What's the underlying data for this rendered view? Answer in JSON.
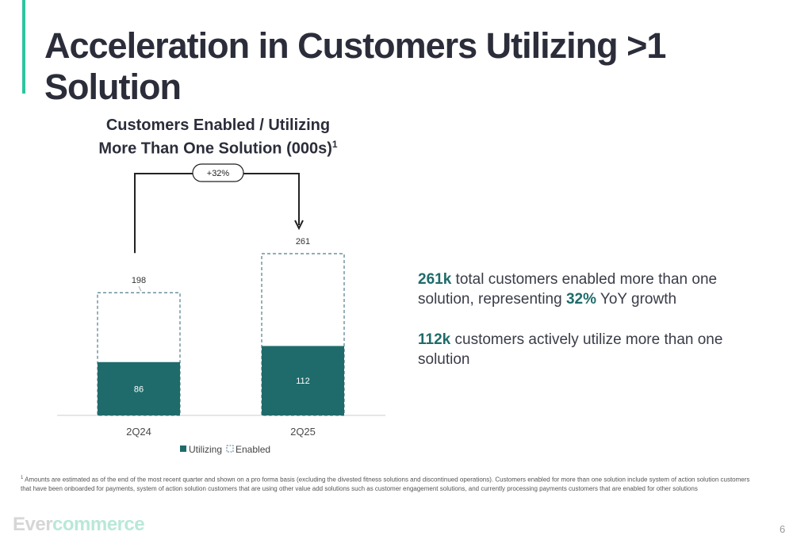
{
  "slide": {
    "title": "Acceleration in Customers Utilizing >1 Solution",
    "page_number": "6",
    "logo": {
      "part1": "Ever",
      "part2": "commerce"
    }
  },
  "colors": {
    "accent_bar": "#2ec4a0",
    "utilizing": "#1f6b6b",
    "enabled_border": "#4f7c8c",
    "title": "#2b2d3a"
  },
  "chart_data": {
    "type": "bar",
    "title_line1": "Customers Enabled / Utilizing",
    "title_line2": "More Than One Solution (000s)",
    "title_footnote_mark": "1",
    "categories": [
      "2Q24",
      "2Q25"
    ],
    "series": [
      {
        "name": "Utilizing",
        "values": [
          86,
          112
        ],
        "style": "solid"
      },
      {
        "name": "Enabled",
        "values": [
          198,
          261
        ],
        "style": "dashed outline"
      }
    ],
    "growth_label": "+32%",
    "legend": {
      "placement": "bottom-center",
      "items": [
        "Utilizing",
        "Enabled"
      ]
    },
    "ylim": [
      0,
      261
    ],
    "grid": false,
    "xlabel": "",
    "ylabel": ""
  },
  "callouts": [
    {
      "highlight": "261k",
      "text": " total customers enabled more than one solution, representing ",
      "highlight2": "32%",
      "text2": " YoY growth"
    },
    {
      "highlight": "112k",
      "text": " customers actively utilize more than one solution"
    }
  ],
  "footnote": {
    "mark": "1",
    "text": " Amounts are estimated as of the end of the most recent quarter and shown on a pro forma basis (excluding the divested fitness solutions and discontinued operations). Customers enabled for more than one solution include system of action solution customers that have been onboarded for payments, system of action solution customers that are using other value add solutions such as customer engagement solutions, and currently processing payments customers that are enabled for other solutions"
  }
}
